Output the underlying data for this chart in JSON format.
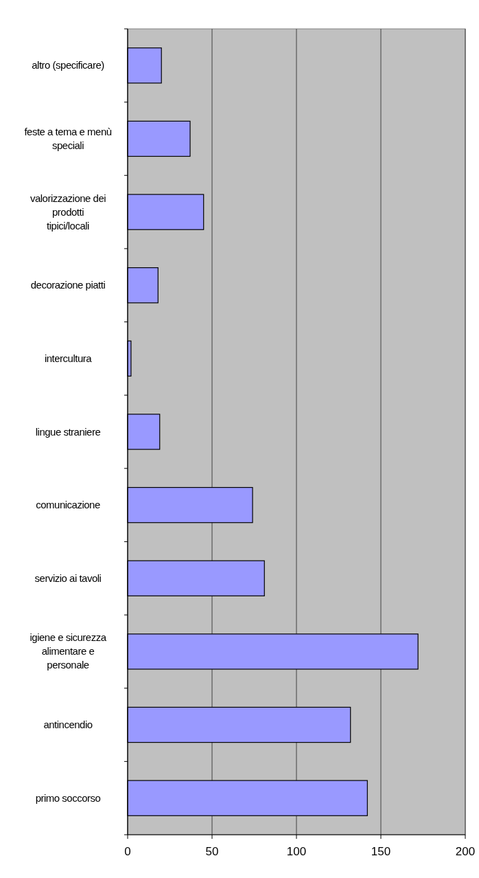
{
  "chart_data": {
    "type": "bar",
    "orientation": "horizontal",
    "categories": [
      "altro (specificare)",
      "feste a tema e menù speciali",
      "valorizzazione dei prodotti tipici/locali",
      "decorazione piatti",
      "intercultura",
      "lingue straniere",
      "comunicazione",
      "servizio ai tavoli",
      "igiene e sicurezza alimentare e personale",
      "antincendio",
      "primo soccorso"
    ],
    "values": [
      20,
      37,
      45,
      18,
      2,
      19,
      74,
      81,
      172,
      132,
      142
    ],
    "color": "#9999ff",
    "xlim": [
      0,
      200
    ],
    "xticks": [
      0,
      50,
      100,
      150,
      200
    ],
    "grid": "x"
  }
}
